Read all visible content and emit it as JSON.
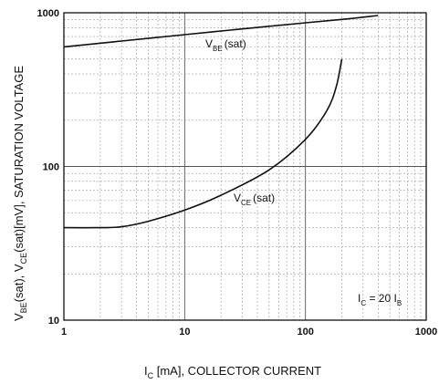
{
  "chart_data": {
    "type": "line",
    "x_scale": "log",
    "y_scale": "log",
    "xlim": [
      1,
      1000
    ],
    "ylim": [
      10,
      1000
    ],
    "grid": true,
    "x_ticks": [
      "1",
      "10",
      "100",
      "1000"
    ],
    "y_ticks": [
      "10",
      "100",
      "1000"
    ],
    "xlabel": {
      "main": "I",
      "sub": "C",
      "rest": " [mA], COLLECTOR CURRENT"
    },
    "ylabel": {
      "p1": "V",
      "s1": "BE",
      "p2": "(sat), V",
      "s2": "CE",
      "p3": "(sat)[mV], SATURATION VOLTAGE"
    },
    "condition": {
      "p1": "I",
      "s1": "C",
      "p2": " = 20 I",
      "s2": "B"
    },
    "series": [
      {
        "name": "V_BE(sat)",
        "label": {
          "main": "V",
          "sub": "BE",
          "rest": "(sat)"
        },
        "color": "#111111",
        "points": [
          [
            1,
            600
          ],
          [
            3,
            655
          ],
          [
            10,
            720
          ],
          [
            30,
            785
          ],
          [
            100,
            860
          ],
          [
            200,
            905
          ],
          [
            400,
            960
          ]
        ]
      },
      {
        "name": "V_CE(sat)",
        "label": {
          "main": "V",
          "sub": "CE",
          "rest": "(sat)"
        },
        "color": "#111111",
        "points": [
          [
            1,
            40
          ],
          [
            2,
            40
          ],
          [
            3,
            40.5
          ],
          [
            5,
            44
          ],
          [
            10,
            52
          ],
          [
            20,
            65
          ],
          [
            50,
            95
          ],
          [
            100,
            150
          ],
          [
            150,
            230
          ],
          [
            180,
            330
          ],
          [
            200,
            500
          ]
        ]
      }
    ]
  }
}
